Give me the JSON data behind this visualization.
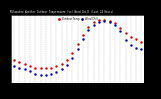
{
  "title": "Milwaukee Weather Outdoor Temperature (vs) Wind Chill (Last 24 Hours)",
  "bg_color": "#000000",
  "plot_bg": "#ffffff",
  "grid_color": "#888888",
  "y_min": -15,
  "y_max": 60,
  "outdoor_temp": [
    10,
    8,
    6,
    4,
    2,
    1,
    1,
    2,
    4,
    6,
    10,
    18,
    28,
    38,
    47,
    52,
    54,
    54,
    53,
    51,
    46,
    40,
    36,
    33,
    30
  ],
  "wind_chill": [
    4,
    2,
    0,
    -2,
    -5,
    -6,
    -6,
    -5,
    -3,
    0,
    5,
    13,
    23,
    34,
    43,
    49,
    52,
    53,
    52,
    49,
    42,
    32,
    27,
    24,
    22
  ],
  "temp_color": "#dd0000",
  "chill_color": "#0000bb",
  "legend_temp": "Outdoor Temp",
  "legend_chill": "Wind Chill",
  "ytick_values": [
    -10,
    0,
    10,
    20,
    30,
    40,
    50
  ],
  "num_points": 25
}
